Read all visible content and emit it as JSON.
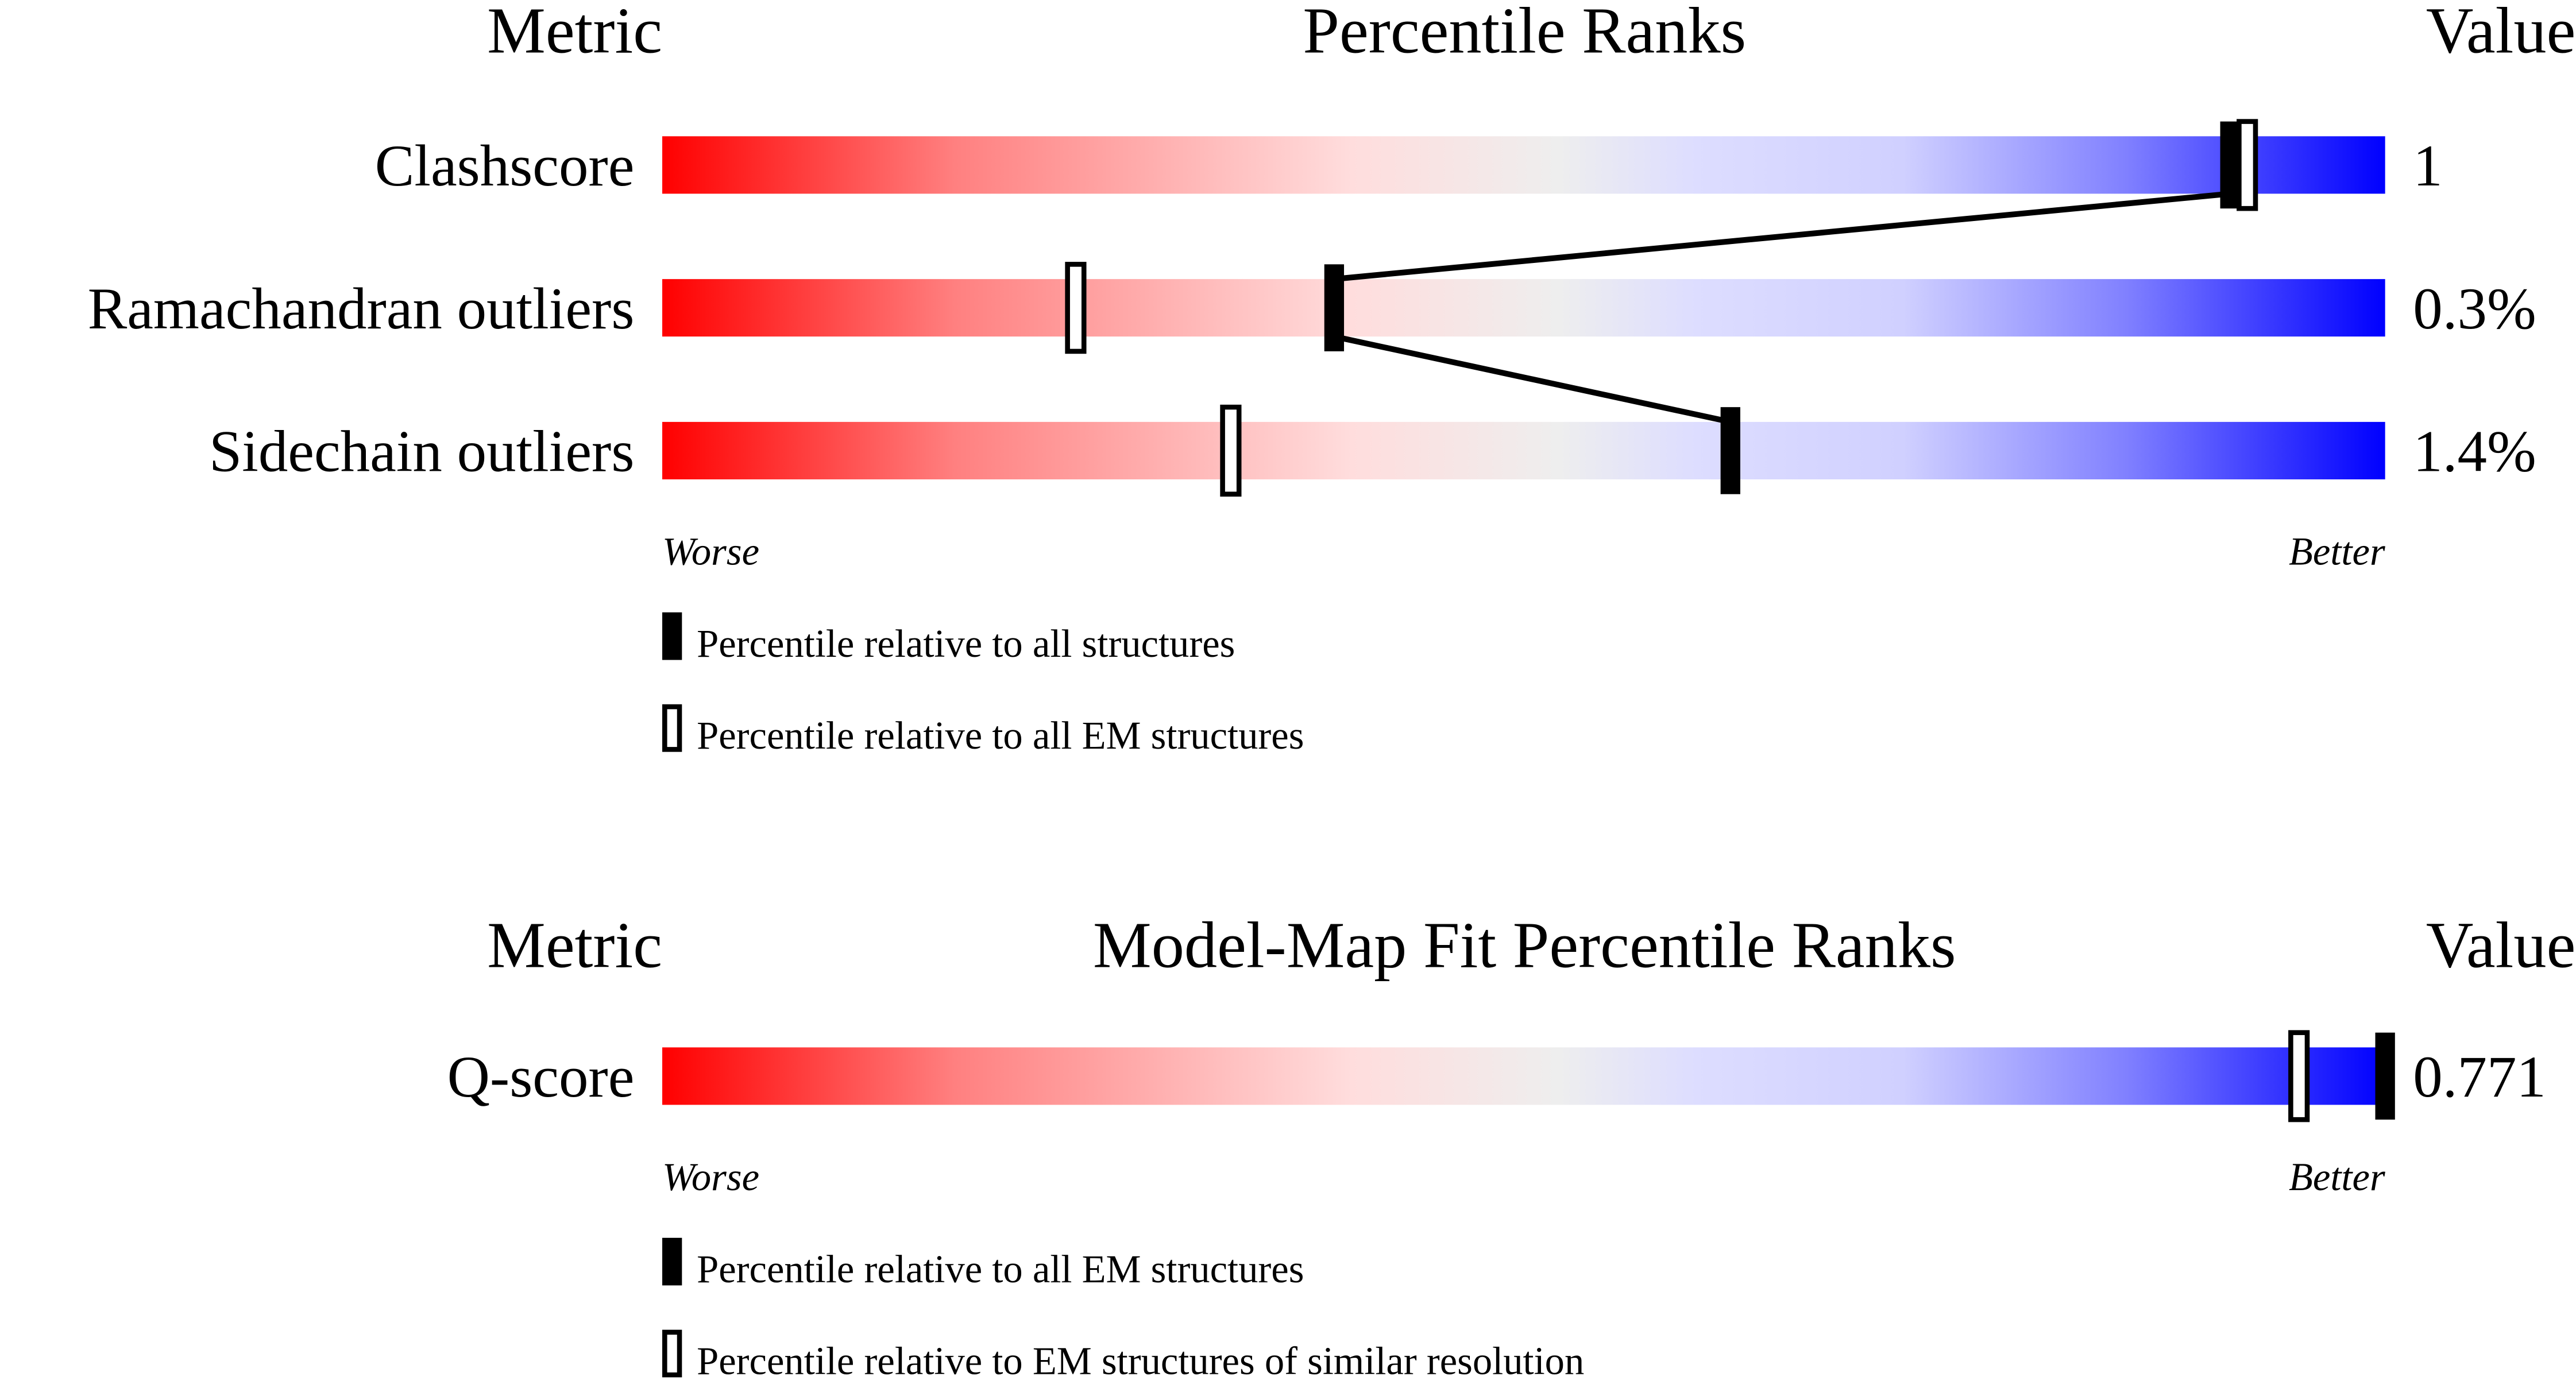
{
  "chart_data": [
    {
      "type": "bar",
      "headers": {
        "metric": "Metric",
        "title": "Percentile Ranks",
        "value": "Value"
      },
      "xlim": [
        0,
        100
      ],
      "axis_labels": {
        "left": "Worse",
        "right": "Better"
      },
      "gradient_colors": [
        "#ff0000",
        "#ff8080",
        "#ffdddd",
        "#eeeeee",
        "#ddddff",
        "#d0d0ff",
        "#8080ff",
        "#0000ff"
      ],
      "series": [
        {
          "name": "Percentile relative to all structures",
          "marker": "filled"
        },
        {
          "name": "Percentile relative to all EM structures",
          "marker": "hollow"
        }
      ],
      "rows": [
        {
          "metric": "Clashscore",
          "value": "1",
          "percentiles": [
            91,
            92
          ]
        },
        {
          "metric": "Ramachandran outliers",
          "value": "0.3%",
          "percentiles": [
            39,
            24
          ]
        },
        {
          "metric": "Sidechain outliers",
          "value": "1.4%",
          "percentiles": [
            62,
            33
          ]
        }
      ],
      "connect_filled_markers": true
    },
    {
      "type": "bar",
      "headers": {
        "metric": "Metric",
        "title": "Model-Map Fit Percentile Ranks",
        "value": "Value"
      },
      "xlim": [
        0,
        100
      ],
      "axis_labels": {
        "left": "Worse",
        "right": "Better"
      },
      "series": [
        {
          "name": "Percentile relative to all EM structures",
          "marker": "filled"
        },
        {
          "name": "Percentile relative to EM structures of similar resolution",
          "marker": "hollow"
        }
      ],
      "rows": [
        {
          "metric": "Q-score",
          "value": "0.771",
          "percentiles": [
            100,
            95
          ]
        }
      ],
      "connect_filled_markers": false
    }
  ]
}
